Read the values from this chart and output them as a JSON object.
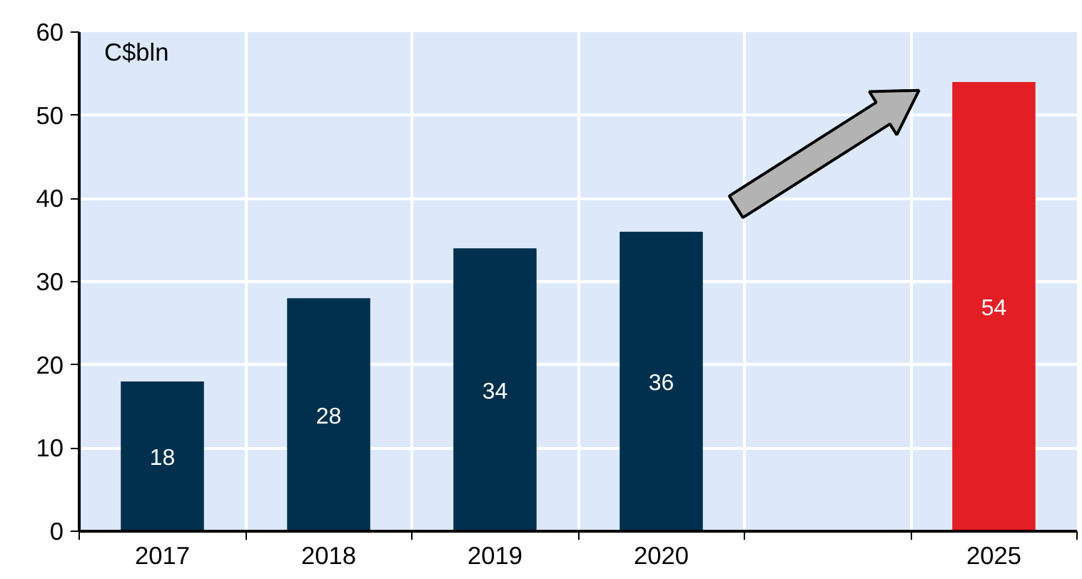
{
  "chart_data": {
    "type": "bar",
    "categories": [
      "2017",
      "2018",
      "2019",
      "2020",
      null,
      "2025"
    ],
    "values": [
      18,
      28,
      34,
      36,
      null,
      54
    ],
    "colors": [
      "#00304d",
      "#00304d",
      "#00304d",
      "#00304d",
      "#00304d",
      "#e31e24"
    ],
    "ylabel": "C$bln",
    "ylim": [
      0,
      60
    ],
    "yticks": [
      0,
      10,
      20,
      30,
      40,
      50,
      60
    ],
    "grid": true,
    "data_labels": true
  }
}
